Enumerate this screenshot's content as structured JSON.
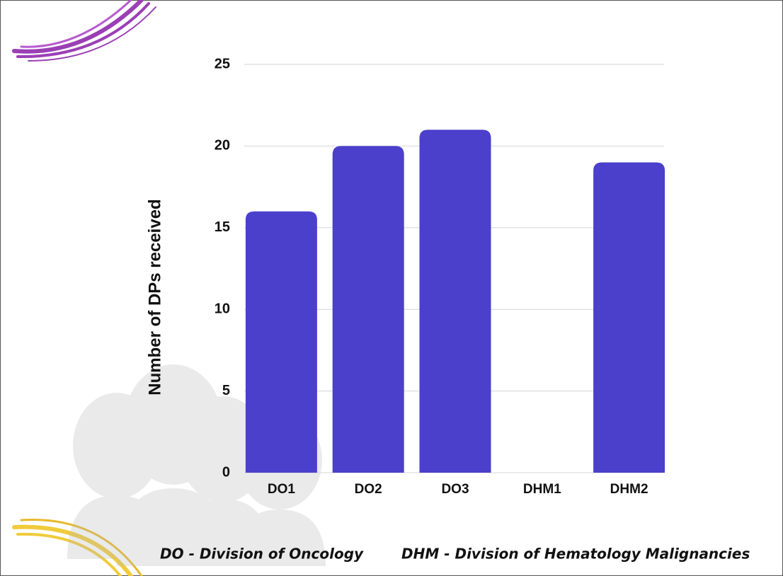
{
  "chart_data": {
    "type": "bar",
    "y_label": "Number of DPs received",
    "categories": [
      "DO1",
      "DO2",
      "DO3",
      "DHM1",
      "DHM2"
    ],
    "values": [
      16,
      20,
      21,
      0,
      19
    ],
    "color": "#4a40cc",
    "ylim": [
      0,
      25
    ],
    "yticks": [
      0,
      5,
      10,
      15,
      20,
      25
    ],
    "grid": true,
    "annotations": [
      "DO - Division of Oncology",
      "DHM - Division of Hematology Malignancies"
    ]
  }
}
